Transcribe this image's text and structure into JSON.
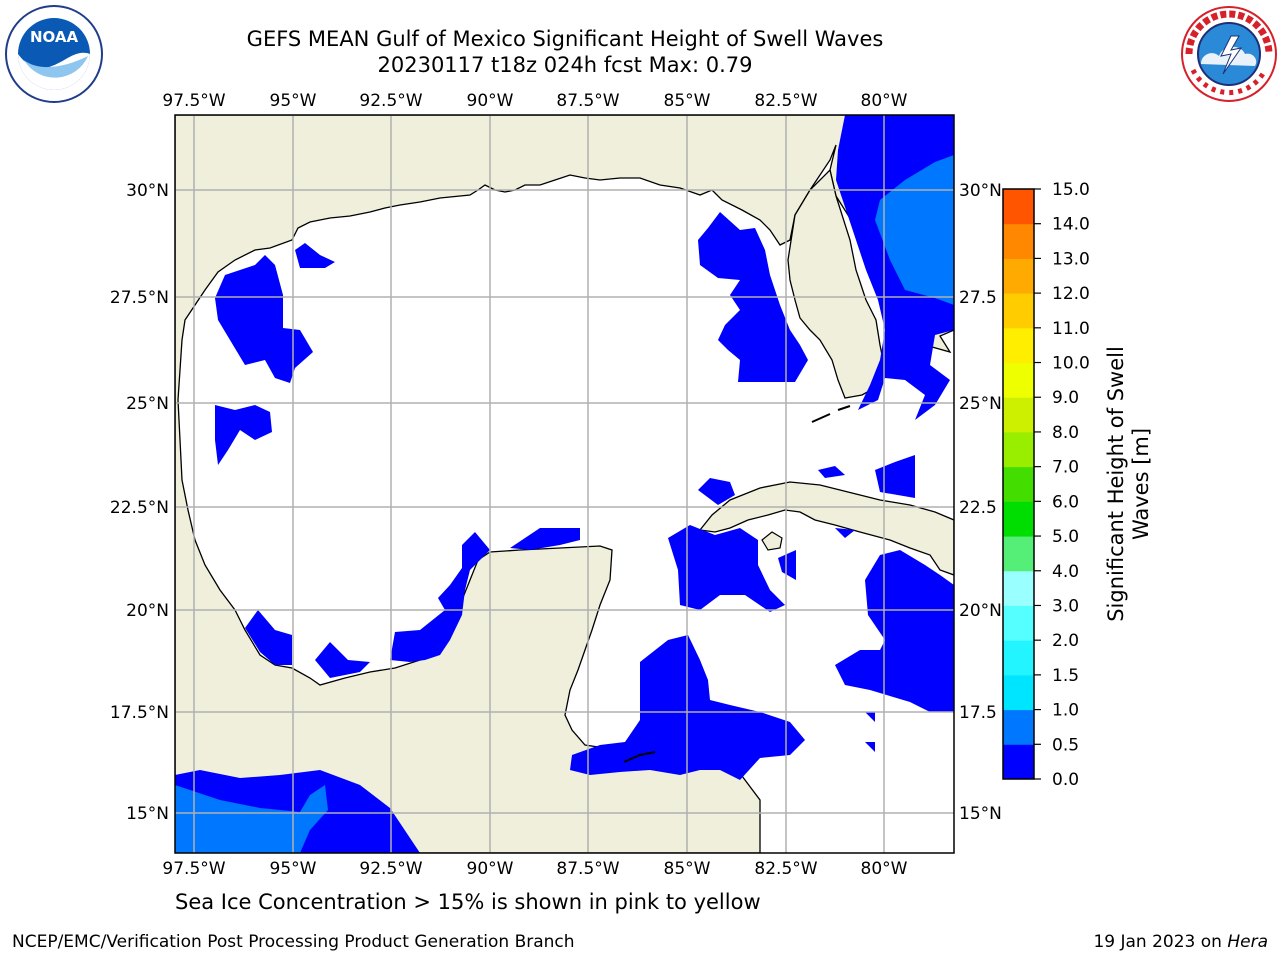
{
  "title_line1": "GEFS MEAN Gulf of Mexico Significant Height of Swell Waves",
  "title_line2": "20230117 t18z 024h fcst   Max: 0.79",
  "lon_labels": [
    "97.5°W",
    "95°W",
    "92.5°W",
    "90°W",
    "87.5°W",
    "85°W",
    "82.5°W",
    "80°W"
  ],
  "lat_labels": [
    "30°N",
    "27.5°N",
    "25°N",
    "22.5°N",
    "20°N",
    "17.5°N",
    "15°N"
  ],
  "lat_labels_right": [
    "30°N",
    "27.5",
    "25°N",
    "22.5",
    "20°N",
    "17.5",
    "15°N"
  ],
  "colorbar": {
    "title": "Significant Height of Swell Waves [m]",
    "levels": [
      "0.0",
      "0.5",
      "1.0",
      "1.5",
      "2.0",
      "3.0",
      "4.0",
      "5.0",
      "6.0",
      "7.0",
      "8.0",
      "9.0",
      "10.0",
      "11.0",
      "12.0",
      "13.0",
      "14.0",
      "15.0"
    ],
    "colors": [
      "#0000ff",
      "#0077ff",
      "#00e5ff",
      "#22f5ff",
      "#55ffff",
      "#99ffff",
      "#55ee77",
      "#00dd00",
      "#44dd00",
      "#99ee00",
      "#ccf000",
      "#eeff00",
      "#ffee00",
      "#ffcc00",
      "#ffaa00",
      "#ff8800",
      "#ff5500",
      "#ff2200",
      "#ff0000"
    ]
  },
  "map_colors": {
    "land": "#efefdc",
    "sea": "#ffffff",
    "swell_low": "#0000ff",
    "swell_mid": "#0077ff",
    "grid": "#b0b0b0"
  },
  "footer_note": "Sea Ice Concentration > 15% is shown in pink to yellow",
  "credit_left": "NCEP/EMC/Verification Post Processing Product Generation Branch",
  "credit_date": "19 Jan 2023 on",
  "credit_host": "Hera",
  "logos": {
    "left": "noaa-logo",
    "right": "nws-logo"
  }
}
